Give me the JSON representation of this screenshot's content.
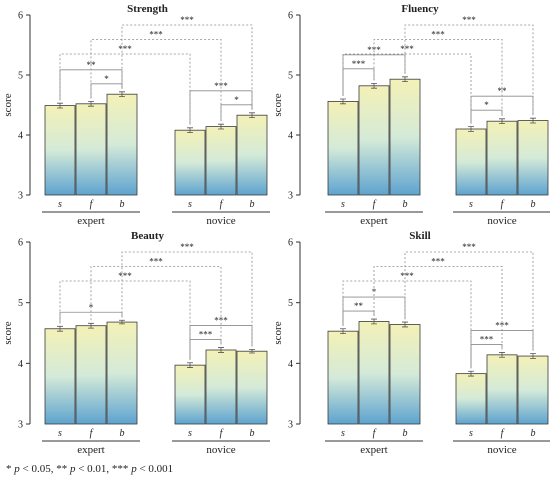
{
  "footnote": {
    "parts": [
      {
        "t": "* ",
        "i": false
      },
      {
        "t": "p",
        "i": true
      },
      {
        "t": " < 0.05, ** ",
        "i": false
      },
      {
        "t": "p",
        "i": true
      },
      {
        "t": " < 0.01, *** ",
        "i": false
      },
      {
        "t": "p",
        "i": true
      },
      {
        "t": " < 0.001",
        "i": false
      }
    ]
  },
  "colors": {
    "bar_top": "#f4f1b6",
    "bar_mid": "#d4ead8",
    "bar_bottom": "#5ea3cf",
    "bar_border": "#3a3a3a",
    "bracket": "#8c8c8c",
    "text": "#222222"
  },
  "chart_data": [
    {
      "type": "bar",
      "title": "Strength",
      "ylabel": "score",
      "ylim": [
        3,
        6
      ],
      "yticks": [
        3,
        4,
        5,
        6
      ],
      "groups": [
        {
          "name": "expert",
          "categories": [
            "s",
            "f",
            "b"
          ],
          "values": [
            4.49,
            4.52,
            4.68
          ],
          "errors": [
            0.04,
            0.04,
            0.04
          ]
        },
        {
          "name": "novice",
          "categories": [
            "s",
            "f",
            "b"
          ],
          "values": [
            4.08,
            4.14,
            4.33
          ],
          "errors": [
            0.04,
            0.04,
            0.04
          ]
        }
      ],
      "significance": [
        {
          "from": [
            0,
            1
          ],
          "to": [
            0,
            2
          ],
          "label": "*"
        },
        {
          "from": [
            0,
            0
          ],
          "to": [
            0,
            2
          ],
          "label": "**"
        },
        {
          "from": [
            1,
            1
          ],
          "to": [
            1,
            2
          ],
          "label": "*"
        },
        {
          "from": [
            1,
            0
          ],
          "to": [
            1,
            2
          ],
          "label": "***"
        },
        {
          "from": [
            0,
            0
          ],
          "to": [
            1,
            0
          ],
          "label": "***"
        },
        {
          "from": [
            0,
            1
          ],
          "to": [
            1,
            1
          ],
          "label": "***"
        },
        {
          "from": [
            0,
            2
          ],
          "to": [
            1,
            2
          ],
          "label": "***"
        }
      ]
    },
    {
      "type": "bar",
      "title": "Fluency",
      "ylabel": "score",
      "ylim": [
        3,
        6
      ],
      "yticks": [
        3,
        4,
        5,
        6
      ],
      "groups": [
        {
          "name": "expert",
          "categories": [
            "s",
            "f",
            "b"
          ],
          "values": [
            4.56,
            4.82,
            4.93
          ],
          "errors": [
            0.04,
            0.04,
            0.04
          ]
        },
        {
          "name": "novice",
          "categories": [
            "s",
            "f",
            "b"
          ],
          "values": [
            4.1,
            4.23,
            4.24
          ],
          "errors": [
            0.04,
            0.04,
            0.04
          ]
        }
      ],
      "significance": [
        {
          "from": [
            0,
            0
          ],
          "to": [
            0,
            1
          ],
          "label": "***"
        },
        {
          "from": [
            0,
            0
          ],
          "to": [
            0,
            2
          ],
          "label": "***"
        },
        {
          "from": [
            1,
            0
          ],
          "to": [
            1,
            1
          ],
          "label": "*"
        },
        {
          "from": [
            1,
            0
          ],
          "to": [
            1,
            2
          ],
          "label": "**"
        },
        {
          "from": [
            0,
            0
          ],
          "to": [
            1,
            0
          ],
          "label": "***"
        },
        {
          "from": [
            0,
            1
          ],
          "to": [
            1,
            1
          ],
          "label": "***"
        },
        {
          "from": [
            0,
            2
          ],
          "to": [
            1,
            2
          ],
          "label": "***"
        }
      ]
    },
    {
      "type": "bar",
      "title": "Beauty",
      "ylabel": "score",
      "ylim": [
        3,
        6
      ],
      "yticks": [
        3,
        4,
        5,
        6
      ],
      "groups": [
        {
          "name": "expert",
          "categories": [
            "s",
            "f",
            "b"
          ],
          "values": [
            4.57,
            4.62,
            4.68
          ],
          "errors": [
            0.04,
            0.04,
            0.03
          ]
        },
        {
          "name": "novice",
          "categories": [
            "s",
            "f",
            "b"
          ],
          "values": [
            3.97,
            4.22,
            4.2
          ],
          "errors": [
            0.04,
            0.04,
            0.03
          ]
        }
      ],
      "significance": [
        {
          "from": [
            0,
            0
          ],
          "to": [
            0,
            2
          ],
          "label": "*"
        },
        {
          "from": [
            1,
            0
          ],
          "to": [
            1,
            1
          ],
          "label": "***"
        },
        {
          "from": [
            1,
            0
          ],
          "to": [
            1,
            2
          ],
          "label": "***"
        },
        {
          "from": [
            0,
            0
          ],
          "to": [
            1,
            0
          ],
          "label": "***"
        },
        {
          "from": [
            0,
            1
          ],
          "to": [
            1,
            1
          ],
          "label": "***"
        },
        {
          "from": [
            0,
            2
          ],
          "to": [
            1,
            2
          ],
          "label": "***"
        }
      ]
    },
    {
      "type": "bar",
      "title": "Skill",
      "ylabel": "score",
      "ylim": [
        3,
        6
      ],
      "yticks": [
        3,
        4,
        5,
        6
      ],
      "groups": [
        {
          "name": "expert",
          "categories": [
            "s",
            "f",
            "b"
          ],
          "values": [
            4.53,
            4.69,
            4.64
          ],
          "errors": [
            0.04,
            0.04,
            0.04
          ]
        },
        {
          "name": "novice",
          "categories": [
            "s",
            "f",
            "b"
          ],
          "values": [
            3.83,
            4.14,
            4.12
          ],
          "errors": [
            0.04,
            0.04,
            0.04
          ]
        }
      ],
      "significance": [
        {
          "from": [
            0,
            0
          ],
          "to": [
            0,
            1
          ],
          "label": "**"
        },
        {
          "from": [
            0,
            0
          ],
          "to": [
            0,
            2
          ],
          "label": "*"
        },
        {
          "from": [
            1,
            0
          ],
          "to": [
            1,
            1
          ],
          "label": "***"
        },
        {
          "from": [
            1,
            0
          ],
          "to": [
            1,
            2
          ],
          "label": "***"
        },
        {
          "from": [
            0,
            0
          ],
          "to": [
            1,
            0
          ],
          "label": "***"
        },
        {
          "from": [
            0,
            1
          ],
          "to": [
            1,
            1
          ],
          "label": "***"
        },
        {
          "from": [
            0,
            2
          ],
          "to": [
            1,
            2
          ],
          "label": "***"
        }
      ]
    }
  ]
}
